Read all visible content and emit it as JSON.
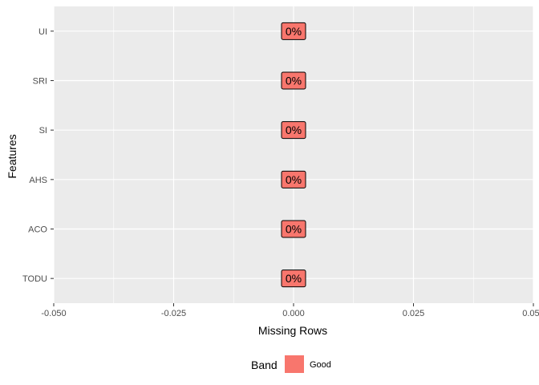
{
  "chart_data": {
    "type": "bar",
    "orientation": "horizontal",
    "categories": [
      "UI",
      "SRI",
      "SI",
      "AHS",
      "ACO",
      "TODU"
    ],
    "values": [
      0,
      0,
      0,
      0,
      0,
      0
    ],
    "labels": [
      "0%",
      "0%",
      "0%",
      "0%",
      "0%",
      "0%"
    ],
    "band": [
      "Good",
      "Good",
      "Good",
      "Good",
      "Good",
      "Good"
    ],
    "xlabel": "Missing Rows",
    "ylabel": "Features",
    "xlim": [
      -0.05,
      0.05
    ],
    "x_ticks": [
      -0.05,
      -0.025,
      0.0,
      0.025,
      0.05
    ],
    "x_tick_labels": [
      "-0.050",
      "-0.025",
      "0.000",
      "0.025",
      "0.050"
    ],
    "grid": true,
    "legend": {
      "title": "Band",
      "position": "bottom",
      "entries": [
        {
          "label": "Good",
          "color": "#F8766D"
        }
      ]
    },
    "colors": {
      "panel_background": "#EBEBEB",
      "grid_major": "#FFFFFF",
      "label_fill": "#F8766D"
    }
  }
}
